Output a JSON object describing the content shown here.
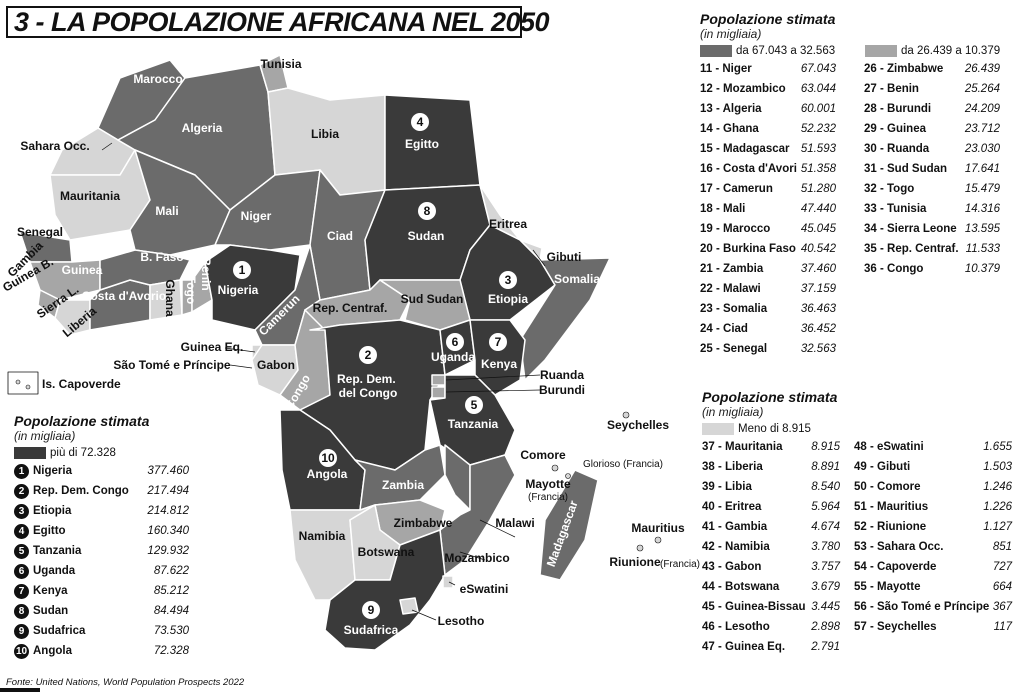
{
  "title": "3 - LA POPOLAZIONE AFRICANA NEL 2050",
  "source": "Fonte: United Nations, World Population Prospects 2022",
  "colors": {
    "top": "#3a3a3a",
    "high": "#6b6b6b",
    "mid": "#a6a6a6",
    "low": "#d6d6d6",
    "border": "#ffffff"
  },
  "legend_top": {
    "heading": "Popolazione stimata",
    "sub": "(in migliaia)",
    "class_label": "più di 72.328",
    "rows": [
      {
        "rank": "1",
        "name": "Nigeria",
        "value": "377.460"
      },
      {
        "rank": "2",
        "name": "Rep. Dem. Congo",
        "value": "217.494"
      },
      {
        "rank": "3",
        "name": "Etiopia",
        "value": "214.812"
      },
      {
        "rank": "4",
        "name": "Egitto",
        "value": "160.340"
      },
      {
        "rank": "5",
        "name": "Tanzania",
        "value": "129.932"
      },
      {
        "rank": "6",
        "name": "Uganda",
        "value": "87.622"
      },
      {
        "rank": "7",
        "name": "Kenya",
        "value": "85.212"
      },
      {
        "rank": "8",
        "name": "Sudan",
        "value": "84.494"
      },
      {
        "rank": "9",
        "name": "Sudafrica",
        "value": "73.530"
      },
      {
        "rank": "10",
        "name": "Angola",
        "value": "72.328"
      }
    ]
  },
  "legend_mid": {
    "heading": "Popolazione stimata",
    "sub": "(in migliaia)",
    "class_high": "da 67.043 a 32.563",
    "class_mid": "da 26.439 a 10.379",
    "col1": [
      {
        "label": "11 - Niger",
        "value": "67.043"
      },
      {
        "label": "12 - Mozambico",
        "value": "63.044"
      },
      {
        "label": "13 - Algeria",
        "value": "60.001"
      },
      {
        "label": "14 - Ghana",
        "value": "52.232"
      },
      {
        "label": "15 - Madagascar",
        "value": "51.593"
      },
      {
        "label": "16 - Costa d'Avorio",
        "value": "51.358"
      },
      {
        "label": "17 - Camerun",
        "value": "51.280"
      },
      {
        "label": "18 - Mali",
        "value": "47.440"
      },
      {
        "label": "19 - Marocco",
        "value": "45.045"
      },
      {
        "label": "20 - Burkina Faso",
        "value": "40.542"
      },
      {
        "label": "21 - Zambia",
        "value": "37.460"
      },
      {
        "label": "22 - Malawi",
        "value": "37.159"
      },
      {
        "label": "23 - Somalia",
        "value": "36.463"
      },
      {
        "label": "24 - Ciad",
        "value": "36.452"
      },
      {
        "label": "25 - Senegal",
        "value": "32.563"
      }
    ],
    "col2": [
      {
        "label": "26 - Zimbabwe",
        "value": "26.439"
      },
      {
        "label": "27 - Benin",
        "value": "25.264"
      },
      {
        "label": "28 - Burundi",
        "value": "24.209"
      },
      {
        "label": "29 - Guinea",
        "value": "23.712"
      },
      {
        "label": "30 - Ruanda",
        "value": "23.030"
      },
      {
        "label": "31 - Sud Sudan",
        "value": "17.641"
      },
      {
        "label": "32 - Togo",
        "value": "15.479"
      },
      {
        "label": "33 - Tunisia",
        "value": "14.316"
      },
      {
        "label": "34 - Sierra Leone",
        "value": "13.595"
      },
      {
        "label": "35 - Rep. Centraf.",
        "value": "11.533"
      },
      {
        "label": "36 - Congo",
        "value": "10.379"
      }
    ]
  },
  "legend_low": {
    "heading": "Popolazione stimata",
    "sub": "(in migliaia)",
    "class_low": "Meno di 8.915",
    "col1": [
      {
        "label": "37 - Mauritania",
        "value": "8.915"
      },
      {
        "label": "38 - Liberia",
        "value": "8.891"
      },
      {
        "label": "39 - Libia",
        "value": "8.540"
      },
      {
        "label": "40 - Eritrea",
        "value": "5.964"
      },
      {
        "label": "41 - Gambia",
        "value": "4.674"
      },
      {
        "label": "42 - Namibia",
        "value": "3.780"
      },
      {
        "label": "43 - Gabon",
        "value": "3.757"
      },
      {
        "label": "44 - Botswana",
        "value": "3.679"
      },
      {
        "label": "45 - Guinea-Bissau",
        "value": "3.445"
      },
      {
        "label": "46 - Lesotho",
        "value": "2.898"
      },
      {
        "label": "47 - Guinea Eq.",
        "value": "2.791"
      }
    ],
    "col2": [
      {
        "label": "48 - eSwatini",
        "value": "1.655"
      },
      {
        "label": "49 - Gibuti",
        "value": "1.503"
      },
      {
        "label": "50 - Comore",
        "value": "1.246"
      },
      {
        "label": "51 - Mauritius",
        "value": "1.226"
      },
      {
        "label": "52 - Riunione",
        "value": "1.127"
      },
      {
        "label": "53 - Sahara Occ.",
        "value": "851"
      },
      {
        "label": "54 - Capoverde",
        "value": "727"
      },
      {
        "label": "55 - Mayotte",
        "value": "664"
      },
      {
        "label": "56 - São Tomé e Príncipe",
        "value": "367"
      },
      {
        "label": "57 - Seychelles",
        "value": "117"
      }
    ]
  },
  "map_labels": {
    "marocco": "Marocco",
    "tunisia": "Tunisia",
    "algeria": "Algeria",
    "libia": "Libia",
    "egitto": "Egitto",
    "sahara": "Sahara Occ.",
    "mauritania": "Mauritania",
    "mali": "Mali",
    "niger": "Niger",
    "ciad": "Ciad",
    "sudan": "Sudan",
    "eritrea": "Eritrea",
    "gibuti": "Gibuti",
    "somalia": "Somalia",
    "etiopia": "Etiopia",
    "senegal": "Senegal",
    "gambia": "Gambia",
    "guineab": "Guinea B.",
    "guinea": "Guinea",
    "sierra": "Sierra L.",
    "liberia": "Liberia",
    "bfaso": "B. Faso",
    "costa": "Costa d'Avorio",
    "ghana": "Ghana",
    "togo": "Togo",
    "benin": "Benin",
    "nigeria": "Nigeria",
    "camerun": "Camerun",
    "repcentr": "Rep. Centraf.",
    "sudsudan": "Sud Sudan",
    "guineaeq": "Guinea Eq.",
    "saotome": "São Tomé e Príncipe",
    "gabon": "Gabon",
    "congo": "Congo",
    "rdc": "Rep. Dem. del Congo",
    "uganda": "Uganda",
    "kenya": "Kenya",
    "ruanda": "Ruanda",
    "burundi": "Burundi",
    "tanzania": "Tanzania",
    "seychelles": "Seychelles",
    "comore": "Comore",
    "glorioso": "Glorioso (Francia)",
    "mayotte": "Mayotte",
    "mayotte_fr": "(Francia)",
    "angola": "Angola",
    "zambia": "Zambia",
    "malawi": "Malawi",
    "zimbabwe": "Zimbabwe",
    "namibia": "Namibia",
    "botswana": "Botswana",
    "mozambico": "Mozambico",
    "madagascar": "Madagascar",
    "mauritius": "Mauritius",
    "riunione": "Riunione",
    "riunione_fr": "(Francia)",
    "eswatini": "eSwatini",
    "sudafrica": "Sudafrica",
    "lesotho": "Lesotho",
    "capoverde": "Is. Capoverde"
  }
}
